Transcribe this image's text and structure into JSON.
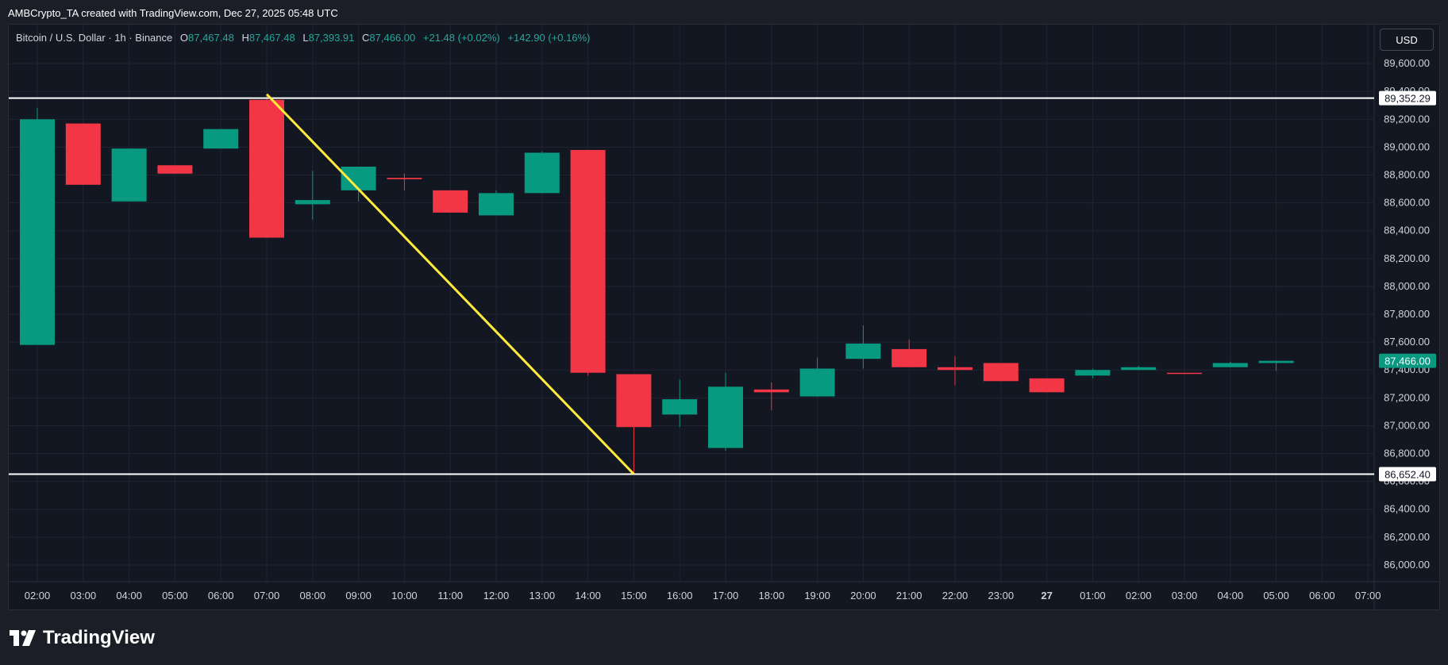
{
  "header": {
    "text": "AMBCrypto_TA created with TradingView.com, Dec 27, 2025 05:48 UTC"
  },
  "legend": {
    "symbol": "Bitcoin / U.S. Dollar · 1h · Binance",
    "open_key": "O",
    "open": "87,467.48",
    "high_key": "H",
    "high": "87,467.48",
    "low_key": "L",
    "low": "87,393.91",
    "close_key": "C",
    "close": "87,466.00",
    "change": "+21.48 (+0.02%)",
    "change2": "+142.90 (+0.16%)"
  },
  "currency": "USD",
  "brand": "TradingView",
  "colors": {
    "up": "#089981",
    "down": "#f23645",
    "trendline": "#ffeb3b",
    "level": "#ffffff",
    "background": "#131722",
    "grid": "#1f2431"
  },
  "chart_data": {
    "type": "candlestick",
    "ylim": [
      85880,
      89880
    ],
    "y_ticks": [
      "89,600.00",
      "89,400.00",
      "89,200.00",
      "89,000.00",
      "88,800.00",
      "88,600.00",
      "88,400.00",
      "88,200.00",
      "88,000.00",
      "87,800.00",
      "87,600.00",
      "87,400.00",
      "87,200.00",
      "87,000.00",
      "86,800.00",
      "86,600.00",
      "86,400.00",
      "86,200.00",
      "86,000.00"
    ],
    "y_tick_values": [
      89600,
      89400,
      89200,
      89000,
      88800,
      88600,
      88400,
      88200,
      88000,
      87800,
      87600,
      87400,
      87200,
      87000,
      86800,
      86600,
      86400,
      86200,
      86000
    ],
    "x_labels": [
      "02:00",
      "03:00",
      "04:00",
      "05:00",
      "06:00",
      "07:00",
      "08:00",
      "09:00",
      "10:00",
      "11:00",
      "12:00",
      "13:00",
      "14:00",
      "15:00",
      "16:00",
      "17:00",
      "18:00",
      "19:00",
      "20:00",
      "21:00",
      "22:00",
      "23:00",
      "27",
      "01:00",
      "02:00",
      "03:00",
      "04:00",
      "05:00",
      "06:00",
      "07:00"
    ],
    "candles": [
      {
        "t": "02:00",
        "o": 87580,
        "h": 89280,
        "l": 87580,
        "c": 89200
      },
      {
        "t": "03:00",
        "o": 89170,
        "h": 89170,
        "l": 88730,
        "c": 88730
      },
      {
        "t": "04:00",
        "o": 88610,
        "h": 88990,
        "l": 88610,
        "c": 88990
      },
      {
        "t": "05:00",
        "o": 88870,
        "h": 88870,
        "l": 88810,
        "c": 88810
      },
      {
        "t": "06:00",
        "o": 88990,
        "h": 89130,
        "l": 88990,
        "c": 89130
      },
      {
        "t": "07:00",
        "o": 89340,
        "h": 89370,
        "l": 88350,
        "c": 88350
      },
      {
        "t": "08:00",
        "o": 88590,
        "h": 88830,
        "l": 88480,
        "c": 88620
      },
      {
        "t": "09:00",
        "o": 88690,
        "h": 88860,
        "l": 88610,
        "c": 88860
      },
      {
        "t": "10:00",
        "o": 88780,
        "h": 88810,
        "l": 88690,
        "c": 88770
      },
      {
        "t": "11:00",
        "o": 88690,
        "h": 88690,
        "l": 88530,
        "c": 88530
      },
      {
        "t": "12:00",
        "o": 88510,
        "h": 88690,
        "l": 88510,
        "c": 88670
      },
      {
        "t": "13:00",
        "o": 88670,
        "h": 88970,
        "l": 88670,
        "c": 88960
      },
      {
        "t": "14:00",
        "o": 88980,
        "h": 88980,
        "l": 87360,
        "c": 87380
      },
      {
        "t": "15:00",
        "o": 87370,
        "h": 87370,
        "l": 86652.4,
        "c": 86990
      },
      {
        "t": "16:00",
        "o": 87080,
        "h": 87330,
        "l": 86990,
        "c": 87190
      },
      {
        "t": "17:00",
        "o": 86840,
        "h": 87380,
        "l": 86820,
        "c": 87280
      },
      {
        "t": "18:00",
        "o": 87260,
        "h": 87310,
        "l": 87110,
        "c": 87240
      },
      {
        "t": "19:00",
        "o": 87210,
        "h": 87490,
        "l": 87210,
        "c": 87410
      },
      {
        "t": "20:00",
        "o": 87480,
        "h": 87720,
        "l": 87410,
        "c": 87590
      },
      {
        "t": "21:00",
        "o": 87550,
        "h": 87620,
        "l": 87420,
        "c": 87420
      },
      {
        "t": "22:00",
        "o": 87420,
        "h": 87500,
        "l": 87290,
        "c": 87400
      },
      {
        "t": "23:00",
        "o": 87450,
        "h": 87450,
        "l": 87320,
        "c": 87320
      },
      {
        "t": "00:00",
        "o": 87340,
        "h": 87340,
        "l": 87240,
        "c": 87240
      },
      {
        "t": "01:00",
        "o": 87360,
        "h": 87410,
        "l": 87340,
        "c": 87400
      },
      {
        "t": "02:00",
        "o": 87400,
        "h": 87430,
        "l": 87400,
        "c": 87420
      },
      {
        "t": "03:00",
        "o": 87380,
        "h": 87380,
        "l": 87370,
        "c": 87375
      },
      {
        "t": "04:00",
        "o": 87420,
        "h": 87460,
        "l": 87420,
        "c": 87450
      },
      {
        "t": "05:00",
        "o": 87450,
        "h": 87467.48,
        "l": 87393.91,
        "c": 87466
      }
    ],
    "levels": [
      {
        "value": 89352.29,
        "label": "89,352.29"
      },
      {
        "value": 86652.4,
        "label": "86,652.40"
      }
    ],
    "last_price": {
      "value": 87466.0,
      "label": "87,466.00"
    },
    "trendline": {
      "from": {
        "t": "07:00",
        "v": 89380
      },
      "to": {
        "t": "15:00",
        "v": 86652.4
      }
    }
  }
}
